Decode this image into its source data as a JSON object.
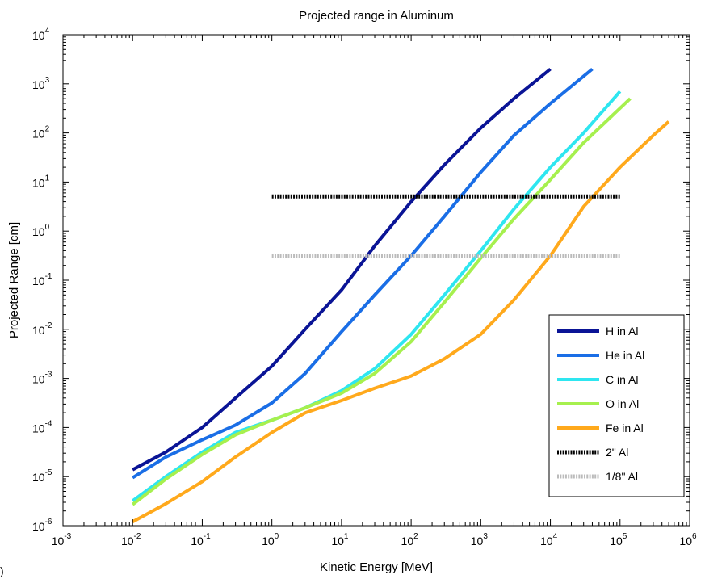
{
  "corner_label": ")",
  "chart_data": {
    "type": "line",
    "title": "Projected range in Aluminum",
    "xlabel": "Kinetic Energy [MeV]",
    "ylabel": "Projected Range [cm]",
    "xscale": "log",
    "yscale": "log",
    "xlim": [
      0.001,
      1000000
    ],
    "ylim": [
      1e-06,
      10000
    ],
    "x_tick_exponents": [
      -3,
      -2,
      -1,
      0,
      1,
      2,
      3,
      4,
      5,
      6
    ],
    "y_tick_exponents": [
      -6,
      -5,
      -4,
      -3,
      -2,
      -1,
      0,
      1,
      2,
      3,
      4
    ],
    "tick_base": "10",
    "grid": false,
    "legend_position": "bottom-right",
    "series": [
      {
        "name": "H in Al",
        "color": "#0a1496",
        "style": "solid",
        "x": [
          0.01,
          0.03,
          0.1,
          0.3,
          1,
          3,
          10,
          30,
          100,
          300,
          1000,
          3000,
          10000
        ],
        "y": [
          1.38e-05,
          3.16e-05,
          0.0001,
          0.000398,
          0.00178,
          0.01,
          0.0631,
          0.501,
          3.98,
          22.4,
          126,
          501,
          2000
        ]
      },
      {
        "name": "He in Al",
        "color": "#1a6ee6",
        "style": "solid",
        "x": [
          0.01,
          0.03,
          0.1,
          0.3,
          1,
          3,
          10,
          30,
          100,
          300,
          1000,
          3000,
          10000,
          40000
        ],
        "y": [
          9.5e-06,
          2.51e-05,
          5.62e-05,
          0.000112,
          0.000316,
          0.00126,
          0.00891,
          0.0501,
          0.316,
          2.0,
          15.8,
          89.1,
          398,
          2000
        ]
      },
      {
        "name": "C in Al",
        "color": "#2ee6f0",
        "style": "solid",
        "x": [
          0.01,
          0.03,
          0.1,
          0.3,
          1,
          3,
          10,
          30,
          100,
          300,
          1000,
          3000,
          10000,
          30000,
          100000
        ],
        "y": [
          3.2e-06,
          1e-05,
          3.16e-05,
          7.94e-05,
          0.000141,
          0.000251,
          0.000562,
          0.00158,
          0.0079,
          0.05,
          0.398,
          2.82,
          20.0,
          100,
          700
        ]
      },
      {
        "name": "O in Al",
        "color": "#a6f04e",
        "style": "solid",
        "x": [
          0.01,
          0.03,
          0.1,
          0.3,
          1,
          3,
          10,
          30,
          100,
          300,
          1000,
          3000,
          10000,
          30000,
          140000
        ],
        "y": [
          2.7e-06,
          8.9e-06,
          2.82e-05,
          7.08e-05,
          0.000141,
          0.000251,
          0.0005,
          0.00126,
          0.00562,
          0.0354,
          0.282,
          1.78,
          11.2,
          63.1,
          500
        ]
      },
      {
        "name": "Fe in Al",
        "color": "#ffa91c",
        "style": "solid",
        "x": [
          0.01,
          0.03,
          0.1,
          0.3,
          1,
          3,
          10,
          30,
          100,
          300,
          1000,
          3000,
          10000,
          30000,
          100000,
          300000,
          500000
        ],
        "y": [
          1.2e-06,
          2.8e-06,
          7.9e-06,
          2.51e-05,
          7.94e-05,
          0.000199,
          0.000354,
          0.000631,
          0.00112,
          0.00251,
          0.0079,
          0.0398,
          0.316,
          3.16,
          20.0,
          89.1,
          170
        ]
      },
      {
        "name": "2\" Al",
        "color": "#000000",
        "style": "dotted",
        "x": [
          1,
          100000
        ],
        "y": [
          5.08,
          5.08
        ]
      },
      {
        "name": "1/8\" Al",
        "color": "#bbbbbb",
        "style": "dotted",
        "x": [
          1,
          100000
        ],
        "y": [
          0.3175,
          0.3175
        ]
      }
    ]
  }
}
